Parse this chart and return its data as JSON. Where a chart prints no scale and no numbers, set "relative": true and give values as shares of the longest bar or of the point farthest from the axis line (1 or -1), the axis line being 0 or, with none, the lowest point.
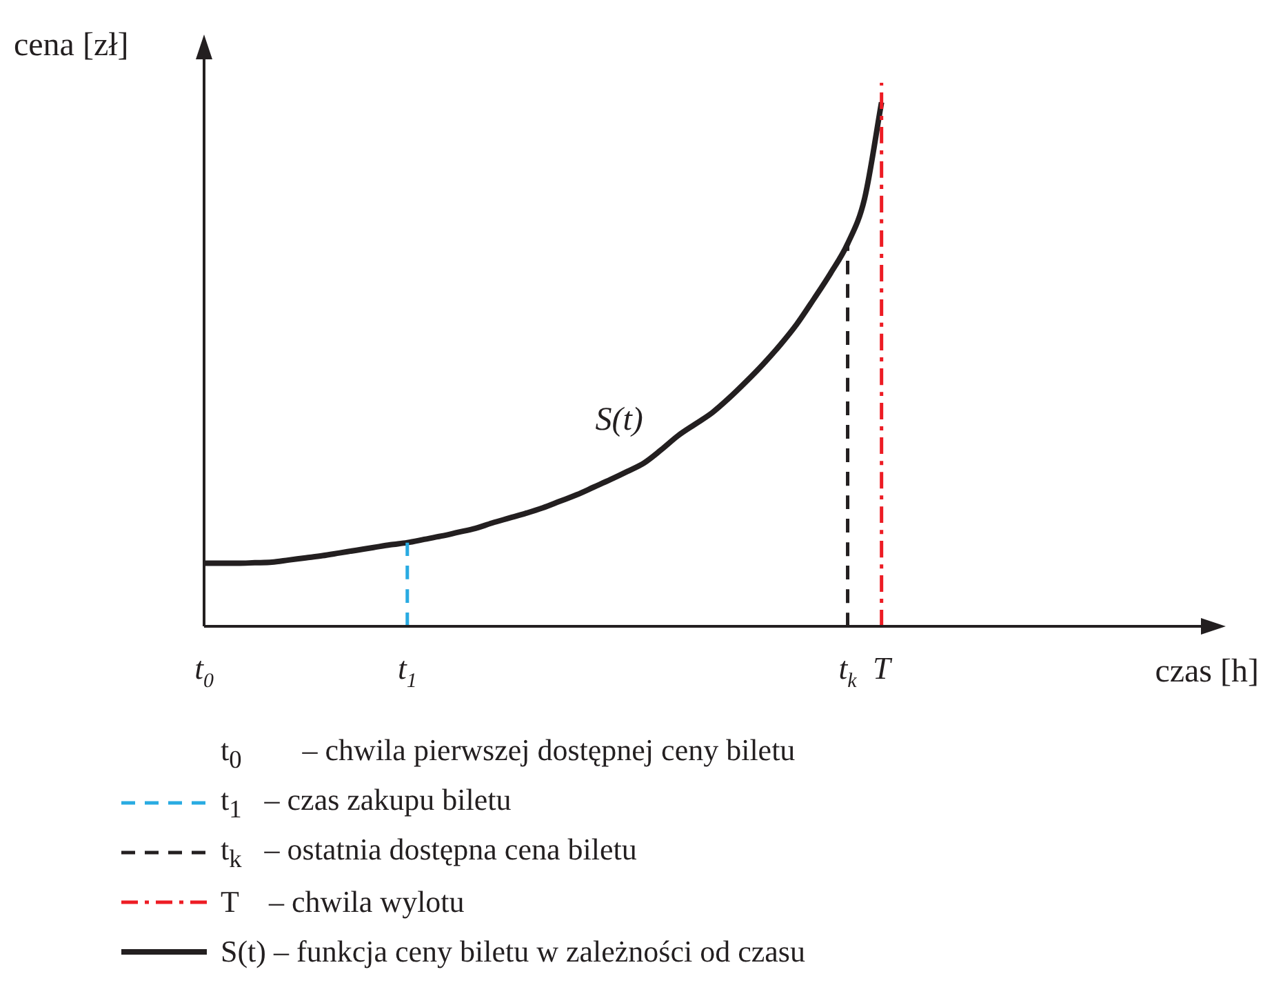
{
  "chart_data": {
    "type": "line",
    "relative": true,
    "xlabel": "czas [h]",
    "ylabel": "cena [zł]",
    "categories": [
      "t$_{0}$",
      null,
      null,
      null,
      null,
      null,
      null,
      null,
      null,
      null,
      null,
      null,
      "t$_{1}$",
      null,
      null,
      null,
      null,
      null,
      null,
      null,
      null,
      null,
      null,
      null,
      null,
      null,
      null,
      null,
      null,
      null,
      null,
      null,
      null,
      null,
      null,
      null,
      null,
      null,
      "t$_{k}$",
      null,
      "T",
      null,
      null,
      null,
      null,
      null,
      null,
      null,
      null,
      null,
      null,
      null,
      null,
      null,
      null,
      null,
      null,
      null,
      null,
      null,
      null
    ],
    "grid": false,
    "legend": "bottom",
    "marker": "none",
    "annotations": [
      "S(t)",
      "t$_{0}$        – chwila pierwszej dostępnej ceny biletu"
    ],
    "series": [
      {
        "name": "t$_{1}$   – czas zakupu biletu",
        "color": "#29abe2",
        "line_style": "dashed",
        "x": [
          "t$_{1}$",
          "t$_{1}$"
        ],
        "values": [
          0,
          0.154
        ]
      },
      {
        "name": "t$_{k}$   – ostatnia dostępna cena biletu",
        "color": "#231f20",
        "line_style": "dashed",
        "x": [
          "t$_{k}$",
          "t$_{k}$"
        ],
        "values": [
          0,
          0.704
        ]
      },
      {
        "name": "T    – chwila wylotu",
        "color": "#ed1c24",
        "line_style": "dashdot",
        "x": [
          "T",
          "T"
        ],
        "values": [
          0,
          1
        ]
      },
      {
        "name": "S(t) – funkcja ceny biletu w zależności od czasu",
        "color": "#231f20",
        "line_style": "solid",
        "values": [
          0.116,
          0.116,
          0.116,
          0.117,
          0.118,
          0.122,
          0.126,
          0.13,
          0.135,
          0.14,
          0.145,
          0.15,
          0.154,
          0.16,
          0.166,
          0.173,
          0.18,
          0.19,
          0.199,
          0.208,
          0.218,
          0.23,
          0.242,
          0.256,
          0.27,
          0.285,
          0.301,
          0.325,
          0.351,
          0.372,
          0.393,
          0.42,
          0.45,
          0.482,
          0.517,
          0.556,
          0.602,
          0.65,
          0.704,
          0.787,
          0.964,
          null,
          null,
          null,
          null,
          null,
          null,
          null,
          null,
          null,
          null,
          null,
          null,
          null,
          null,
          null,
          null,
          null,
          null,
          null,
          null
        ]
      }
    ]
  }
}
